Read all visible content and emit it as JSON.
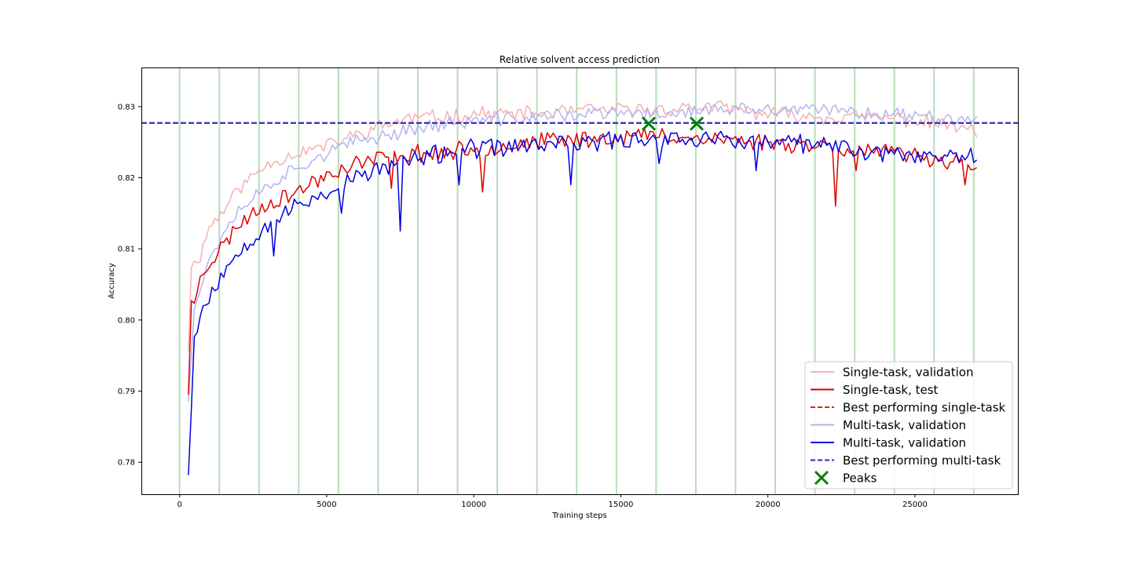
{
  "chart_data": {
    "type": "line",
    "title": "Relative solvent access prediction",
    "xlabel": "Training steps",
    "ylabel": "Accuracy",
    "xlim": [
      -1300,
      28500
    ],
    "ylim": [
      0.7755,
      0.8355
    ],
    "xticks": [
      0,
      5000,
      10000,
      15000,
      20000,
      25000
    ],
    "yticks": [
      0.78,
      0.79,
      0.8,
      0.81,
      0.82,
      0.83
    ],
    "xtick_labels": [
      "0",
      "5000",
      "10000",
      "15000",
      "20000",
      "25000"
    ],
    "ytick_labels": [
      "0.78",
      "0.79",
      "0.80",
      "0.81",
      "0.82",
      "0.83"
    ],
    "grid": false,
    "legend_position": "lower right",
    "epoch_markers_x": [
      0,
      1350,
      2700,
      4050,
      5400,
      6750,
      8100,
      9450,
      10800,
      12150,
      13500,
      14850,
      16200,
      17550,
      18900,
      20250,
      21600,
      22950,
      24300,
      25650,
      27000
    ],
    "epoch_marker_color": "#b8dcb8",
    "x_start": 300,
    "x_step": 100,
    "x_end": 27100,
    "series": [
      {
        "name": "Single-task, validation",
        "color": "#f4b0b0",
        "style": "solid",
        "anchors": [
          [
            300,
            0.7955
          ],
          [
            400,
            0.8075
          ],
          [
            700,
            0.809
          ],
          [
            1000,
            0.813
          ],
          [
            1500,
            0.8155
          ],
          [
            2000,
            0.8185
          ],
          [
            3000,
            0.822
          ],
          [
            4000,
            0.8235
          ],
          [
            5000,
            0.8245
          ],
          [
            6000,
            0.826
          ],
          [
            7000,
            0.8275
          ],
          [
            8000,
            0.8285
          ],
          [
            9000,
            0.8285
          ],
          [
            10000,
            0.829
          ],
          [
            12000,
            0.829
          ],
          [
            14000,
            0.8295
          ],
          [
            16000,
            0.8295
          ],
          [
            18000,
            0.83
          ],
          [
            20000,
            0.829
          ],
          [
            22000,
            0.8285
          ],
          [
            24000,
            0.8285
          ],
          [
            26000,
            0.8275
          ],
          [
            27100,
            0.8265
          ]
        ],
        "noise": 0.0009,
        "seed": 11
      },
      {
        "name": "Single-task, test",
        "color": "#dd0000",
        "style": "solid",
        "anchors": [
          [
            300,
            0.7895
          ],
          [
            350,
            0.803
          ],
          [
            500,
            0.802
          ],
          [
            700,
            0.8065
          ],
          [
            1000,
            0.808
          ],
          [
            1500,
            0.8105
          ],
          [
            2000,
            0.8135
          ],
          [
            3000,
            0.8165
          ],
          [
            4000,
            0.818
          ],
          [
            5000,
            0.8205
          ],
          [
            6000,
            0.822
          ],
          [
            7000,
            0.823
          ],
          [
            8000,
            0.8235
          ],
          [
            9000,
            0.8235
          ],
          [
            10000,
            0.824
          ],
          [
            12000,
            0.825
          ],
          [
            14000,
            0.8255
          ],
          [
            16000,
            0.826
          ],
          [
            18000,
            0.8255
          ],
          [
            20000,
            0.825
          ],
          [
            22000,
            0.8245
          ],
          [
            24000,
            0.8235
          ],
          [
            26000,
            0.8225
          ],
          [
            27100,
            0.822
          ]
        ],
        "noise": 0.0011,
        "seed": 23,
        "dips": [
          [
            7200,
            0.8185
          ],
          [
            10300,
            0.818
          ],
          [
            22300,
            0.816
          ],
          [
            23000,
            0.821
          ],
          [
            26700,
            0.819
          ]
        ]
      },
      {
        "name": "Best performing single-task",
        "color": "#d62728",
        "style": "dashed",
        "constant": 0.8277
      },
      {
        "name": "Multi-task, validation",
        "color": "#b3b3f5",
        "style": "solid",
        "anchors": [
          [
            300,
            0.7885
          ],
          [
            500,
            0.802
          ],
          [
            800,
            0.8055
          ],
          [
            1000,
            0.8085
          ],
          [
            1500,
            0.8125
          ],
          [
            2000,
            0.8155
          ],
          [
            3000,
            0.819
          ],
          [
            4000,
            0.8215
          ],
          [
            5000,
            0.8235
          ],
          [
            6000,
            0.825
          ],
          [
            7000,
            0.826
          ],
          [
            8000,
            0.827
          ],
          [
            9000,
            0.8275
          ],
          [
            10000,
            0.828
          ],
          [
            12000,
            0.8285
          ],
          [
            14000,
            0.829
          ],
          [
            16000,
            0.829
          ],
          [
            18000,
            0.8295
          ],
          [
            20000,
            0.8295
          ],
          [
            22000,
            0.8295
          ],
          [
            24000,
            0.829
          ],
          [
            26000,
            0.8285
          ],
          [
            27100,
            0.8285
          ]
        ],
        "noise": 0.0009,
        "seed": 37
      },
      {
        "name": "Multi-task, validation",
        "color": "#0000dd",
        "style": "solid",
        "anchors": [
          [
            300,
            0.7782
          ],
          [
            500,
            0.7975
          ],
          [
            700,
            0.8005
          ],
          [
            1000,
            0.8035
          ],
          [
            1500,
            0.8065
          ],
          [
            2000,
            0.81
          ],
          [
            3000,
            0.8135
          ],
          [
            4000,
            0.816
          ],
          [
            5000,
            0.818
          ],
          [
            6000,
            0.82
          ],
          [
            7000,
            0.8215
          ],
          [
            8000,
            0.8225
          ],
          [
            9000,
            0.8235
          ],
          [
            10000,
            0.824
          ],
          [
            12000,
            0.8245
          ],
          [
            14000,
            0.825
          ],
          [
            16000,
            0.8255
          ],
          [
            18000,
            0.8255
          ],
          [
            20000,
            0.825
          ],
          [
            22000,
            0.8245
          ],
          [
            24000,
            0.8235
          ],
          [
            26000,
            0.823
          ],
          [
            27100,
            0.8235
          ]
        ],
        "noise": 0.0012,
        "seed": 53,
        "dips": [
          [
            3200,
            0.809
          ],
          [
            5500,
            0.815
          ],
          [
            7500,
            0.8125
          ],
          [
            9500,
            0.819
          ],
          [
            13300,
            0.819
          ],
          [
            16300,
            0.822
          ],
          [
            19600,
            0.821
          ],
          [
            23300,
            0.8225
          ]
        ]
      },
      {
        "name": "Best performing multi-task",
        "color": "#2a2ab5",
        "style": "dashed",
        "constant": 0.8277
      }
    ],
    "peaks": {
      "name": "Peaks",
      "color": "#007f00",
      "points": [
        [
          15950,
          0.8276
        ],
        [
          17580,
          0.8276
        ]
      ]
    }
  }
}
